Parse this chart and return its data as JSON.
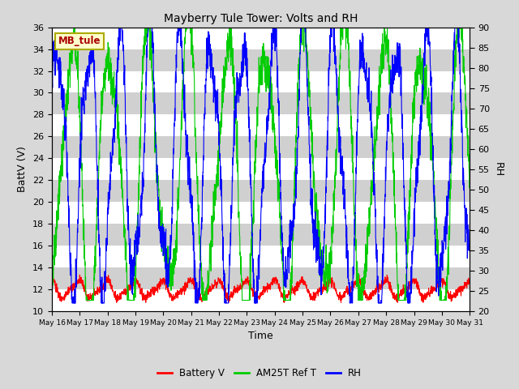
{
  "title": "Mayberry Tule Tower: Volts and RH",
  "xlabel": "Time",
  "ylabel_left": "BattV (V)",
  "ylabel_right": "RH",
  "ylim_left": [
    10,
    36
  ],
  "ylim_right": [
    20,
    90
  ],
  "yticks_left": [
    10,
    12,
    14,
    16,
    18,
    20,
    22,
    24,
    26,
    28,
    30,
    32,
    34,
    36
  ],
  "yticks_right": [
    20,
    25,
    30,
    35,
    40,
    45,
    50,
    55,
    60,
    65,
    70,
    75,
    80,
    85,
    90
  ],
  "xtick_labels": [
    "May 16",
    "May 17",
    "May 18",
    "May 19",
    "May 20",
    "May 21",
    "May 22",
    "May 23",
    "May 24",
    "May 25",
    "May 26",
    "May 27",
    "May 28",
    "May 29",
    "May 30",
    "May 31"
  ],
  "station_label": "MB_tule",
  "station_label_color": "#aa0000",
  "station_box_facecolor": "#ffffcc",
  "station_box_edgecolor": "#aaaa00",
  "bg_color": "#d8d8d8",
  "plot_bg_color": "#e8e8e8",
  "band_color_dark": "#d0d0d0",
  "band_color_light": "#e8e8e8",
  "grid_color": "#ffffff",
  "colors": {
    "battery": "#ff0000",
    "am25t": "#00cc00",
    "rh": "#0000ff"
  },
  "legend_labels": [
    "Battery V",
    "AM25T Ref T",
    "RH"
  ],
  "figsize": [
    6.4,
    4.8
  ],
  "dpi": 100
}
